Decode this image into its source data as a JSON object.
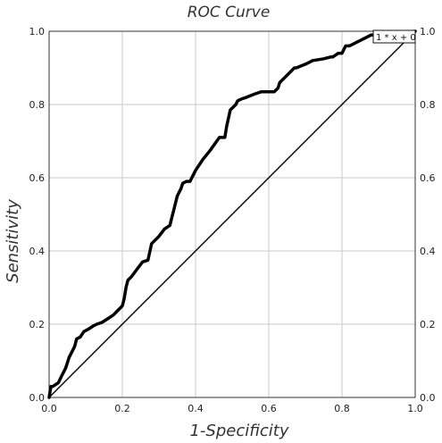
{
  "chart_data": {
    "type": "line",
    "title": "ROC Curve",
    "xlabel": "1-Specificity",
    "ylabel": "Sensitivity",
    "xlim": [
      0,
      1
    ],
    "ylim": [
      0,
      1
    ],
    "x_ticks": [
      "0.0",
      "0.2",
      "0.4",
      "0.6",
      "0.8",
      "1.0"
    ],
    "y_ticks": [
      "0.0",
      "0.2",
      "0.4",
      "0.6",
      "0.8",
      "1.0"
    ],
    "grid": true,
    "annotation": "1 * x + 0",
    "series": [
      {
        "style": "thick",
        "x": [
          0,
          0.005,
          0.01,
          0.025,
          0.03,
          0.035,
          0.04,
          0.045,
          0.05,
          0.055,
          0.06,
          0.065,
          0.07,
          0.075,
          0.085,
          0.095,
          0.105,
          0.12,
          0.13,
          0.145,
          0.16,
          0.175,
          0.19,
          0.2,
          0.205,
          0.21,
          0.215,
          0.225,
          0.24,
          0.255,
          0.27,
          0.28,
          0.29,
          0.3,
          0.315,
          0.33,
          0.335,
          0.34,
          0.35,
          0.36,
          0.365,
          0.375,
          0.385,
          0.4,
          0.42,
          0.44,
          0.465,
          0.48,
          0.485,
          0.495,
          0.51,
          0.515,
          0.525,
          0.54,
          0.56,
          0.58,
          0.6,
          0.615,
          0.625,
          0.63,
          0.65,
          0.67,
          0.675,
          0.7,
          0.72,
          0.75,
          0.77,
          0.775,
          0.79,
          0.8,
          0.81,
          0.82,
          0.83,
          0.84,
          0.85,
          0.86,
          0.88,
          0.9,
          0.92,
          0.94,
          0.97,
          0.98,
          1.0
        ],
        "y": [
          0,
          0.03,
          0.03,
          0.04,
          0.05,
          0.06,
          0.07,
          0.08,
          0.095,
          0.11,
          0.12,
          0.13,
          0.14,
          0.16,
          0.165,
          0.18,
          0.185,
          0.195,
          0.2,
          0.205,
          0.215,
          0.225,
          0.24,
          0.25,
          0.27,
          0.3,
          0.32,
          0.33,
          0.35,
          0.37,
          0.375,
          0.42,
          0.43,
          0.44,
          0.46,
          0.47,
          0.49,
          0.51,
          0.55,
          0.57,
          0.585,
          0.59,
          0.59,
          0.62,
          0.65,
          0.675,
          0.71,
          0.71,
          0.74,
          0.785,
          0.8,
          0.81,
          0.815,
          0.82,
          0.828,
          0.835,
          0.835,
          0.835,
          0.845,
          0.86,
          0.88,
          0.9,
          0.9,
          0.91,
          0.92,
          0.925,
          0.93,
          0.93,
          0.94,
          0.94,
          0.96,
          0.96,
          0.965,
          0.97,
          0.975,
          0.98,
          0.99,
          0.99,
          0.99,
          0.995,
          0.995,
          0.998,
          1.0
        ]
      },
      {
        "style": "thin",
        "x": [
          0,
          1
        ],
        "y": [
          0,
          1
        ]
      }
    ]
  }
}
